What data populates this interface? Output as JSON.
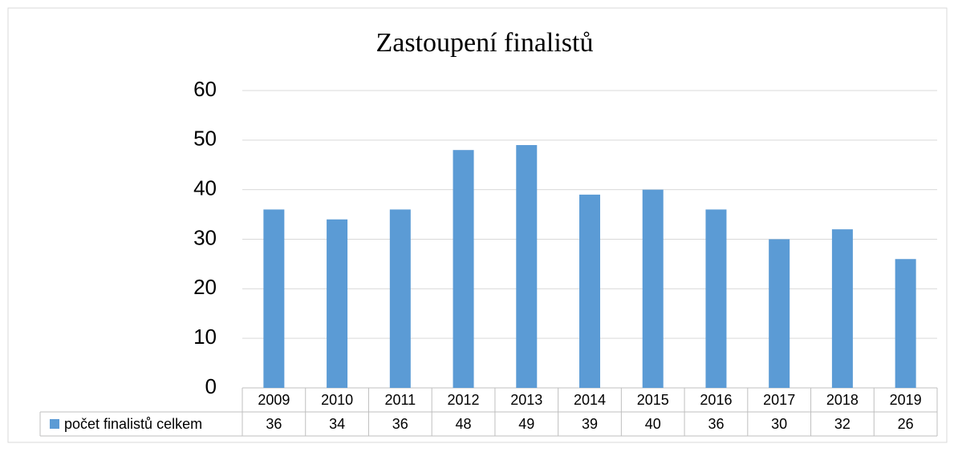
{
  "chart_data": {
    "type": "bar",
    "title": "Zastoupení finalistů",
    "categories": [
      "2009",
      "2010",
      "2011",
      "2012",
      "2013",
      "2014",
      "2015",
      "2016",
      "2017",
      "2018",
      "2019"
    ],
    "series": [
      {
        "name": "počet finalistů celkem",
        "color": "#5b9bd5",
        "values": [
          36,
          34,
          36,
          48,
          49,
          39,
          40,
          36,
          30,
          32,
          26
        ]
      }
    ],
    "ylim": [
      0,
      60
    ],
    "yticks": [
      0,
      10,
      20,
      30,
      40,
      50,
      60
    ],
    "grid": true
  }
}
